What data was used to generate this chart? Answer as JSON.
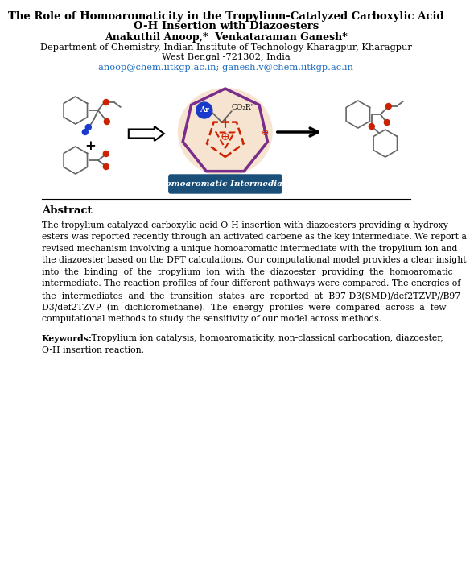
{
  "title_line1": "The Role of Homoaromaticity in the Tropylium-Catalyzed Carboxylic Acid",
  "title_line2": "O-H Insertion with Diazoesters",
  "authors": "Anakuthil Anoop,*  Venkataraman Ganesh*",
  "affiliation1": "Department of Chemistry, Indian Institute of Technology Kharagpur, Kharagpur",
  "affiliation2": "West Bengal -721302, India",
  "email": "anoop@chem.iitkgp.ac.in; ganesh.v@chem.iitkgp.ac.in",
  "abstract_title": "Abstract",
  "abstract_lines": [
    "The tropylium catalyzed carboxylic acid O-H insertion with diazoesters providing α-hydroxy",
    "esters was reported recently through an activated carbene as the key intermediate. We report a",
    "revised mechanism involving a unique homoaromatic intermediate with the tropylium ion and",
    "the diazoester based on the DFT calculations. Our computational model provides a clear insight",
    "into  the  binding  of  the  tropylium  ion  with  the  diazoester  providing  the  homoaromatic",
    "intermediate. The reaction profiles of four different pathways were compared. The energies of",
    "the  intermediates  and  the  transition  states  are  reported  at  B97-D3(SMD)/def2TZVP//B97-",
    "D3/def2TZVP  (in  dichloromethane).  The  energy  profiles  were  compared  across  a  few",
    "computational methods to study the sensitivity of our model across methods."
  ],
  "keywords_bold": "Keywords:",
  "keywords_line1": " Tropylium ion catalysis, homoaromaticity, non-classical carbocation, diazoester,",
  "keywords_line2": "O-H insertion reaction.",
  "bg": "#ffffff",
  "black": "#000000",
  "email_color": "#1a6bbf",
  "dark_blue": "#1a4f7a",
  "red_atom": "#cc2200",
  "blue_atom": "#1a3acc",
  "gray_atom": "#888888",
  "purple": "#7B2D8B",
  "peach": "#f5e0c8"
}
